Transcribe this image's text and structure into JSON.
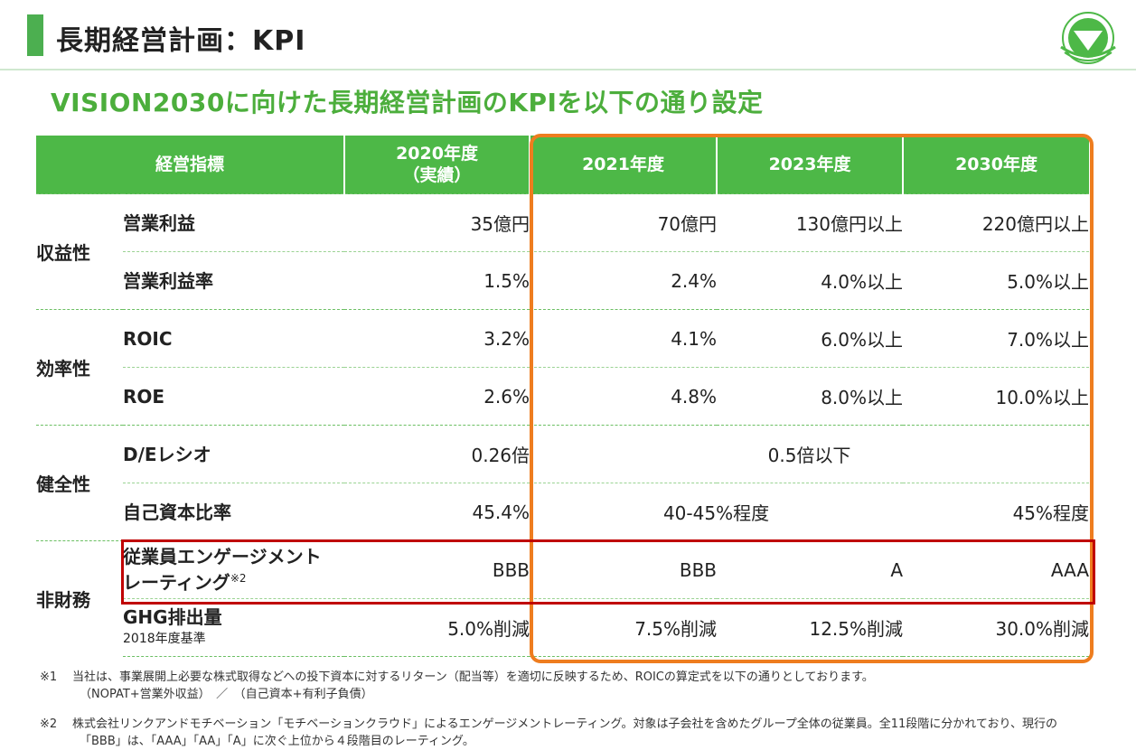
{
  "header": {
    "title": "長期経営計画：KPI"
  },
  "subtitle": "VISION2030に向けた長期経営計画のKPIを以下の通り設定",
  "table": {
    "headers": [
      "経営指標",
      "2020年度",
      "（実績）",
      "2021年度",
      "2023年度",
      "2030年度"
    ],
    "categories": [
      "収益性",
      "効率性",
      "健全性",
      "非財務"
    ],
    "rows": [
      {
        "item": "営業利益",
        "v2020": "35億円",
        "v2021": "70億円",
        "v2023": "130億円以上",
        "v2030": "220億円以上"
      },
      {
        "item": "営業利益率",
        "v2020": "1.5%",
        "v2021": "2.4%",
        "v2023": "4.0%以上",
        "v2030": "5.0%以上"
      },
      {
        "item": "ROIC",
        "v2020": "3.2%",
        "v2021": "4.1%",
        "v2023": "6.0%以上",
        "v2030": "7.0%以上"
      },
      {
        "item": "ROE",
        "v2020": "2.6%",
        "v2021": "4.8%",
        "v2023": "8.0%以上",
        "v2030": "10.0%以上"
      },
      {
        "item": "D/Eレシオ",
        "v2020": "0.26倍",
        "merged": "0.5倍以下"
      },
      {
        "item": "自己資本比率",
        "v2020": "45.4%",
        "merged2123": "40-45%程度",
        "v2030": "45%程度"
      },
      {
        "item": "従業員エンゲージメント",
        "item2": "レーティング",
        "sup": "※2",
        "v2020": "BBB",
        "v2021": "BBB",
        "v2023": "A",
        "v2030": "AAA"
      },
      {
        "item": "GHG排出量",
        "subnote": "2018年度基準",
        "v2020": "5.0%削減",
        "v2021": "7.5%削減",
        "v2023": "12.5%削減",
        "v2030": "30.0%削減"
      }
    ]
  },
  "footnotes": {
    "n1_mark": "※1",
    "n1_line1": "当社は、事業展開上必要な株式取得などへの投下資本に対するリターン（配当等）を適切に反映するため、ROICの算定式を以下の通りとしております。",
    "n1_line2": "（NOPAT+営業外収益）　／　（自己資本+有利子負債）",
    "n2_mark": "※2",
    "n2_line1": "株式会社リンクアンドモチベーション「モチベーションクラウド」によるエンゲージメントレーティング。対象は子会社を含めたグループ全体の従業員。全11段階に分かれており、現行の",
    "n2_line2": "「BBB」は、「AAA」「AA」「A」に次ぐ上位から４段階目のレーティング。"
  },
  "colors": {
    "accent_green": "#4db847",
    "highlight_orange": "#ee7d1f",
    "highlight_red": "#c00000"
  }
}
